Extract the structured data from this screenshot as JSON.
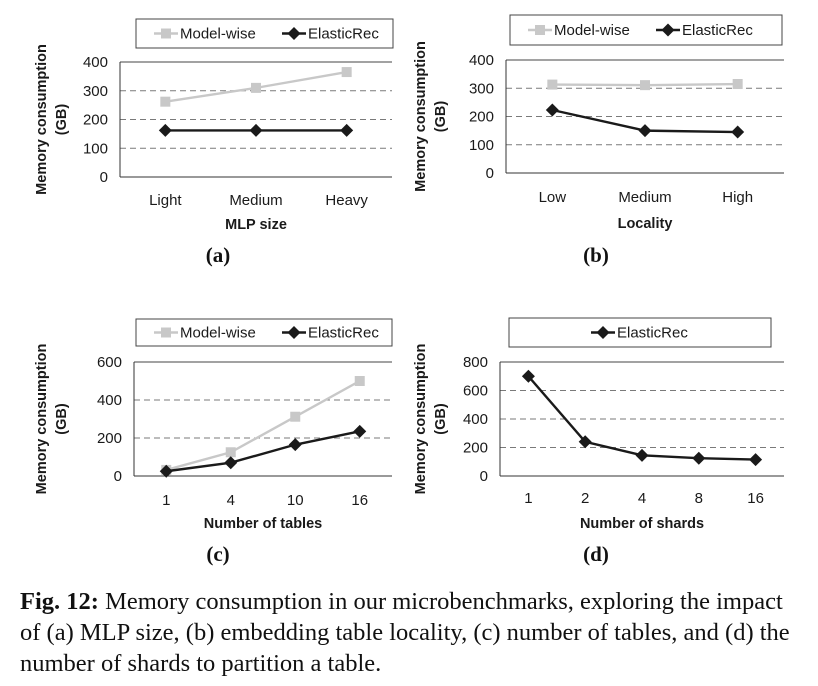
{
  "colors": {
    "model_wise": "#c8c8c8",
    "elasticrec": "#1a1a1a",
    "grid": "#7a7a7a"
  },
  "caption": {
    "label": "Fig. 12:",
    "text": "Memory consumption in our microbenchmarks, exploring the impact of (a) MLP size, (b) embedding table locality, (c) number of tables, and (d) the number of shards to partition a table."
  },
  "chart_data": [
    {
      "panel": "(a)",
      "type": "line",
      "xlabel": "MLP size",
      "ylabel": "Memory consumption (GB)",
      "categories": [
        "Light",
        "Medium",
        "Heavy"
      ],
      "ylim": [
        0,
        400
      ],
      "yticks": [
        0,
        100,
        200,
        300,
        400
      ],
      "grid": true,
      "legend": "top",
      "series": [
        {
          "name": "Model-wise",
          "values": [
            262,
            310,
            365
          ]
        },
        {
          "name": "ElasticRec",
          "values": [
            162,
            162,
            162
          ]
        }
      ]
    },
    {
      "panel": "(b)",
      "type": "line",
      "xlabel": "Locality",
      "ylabel": "Memory consumption (GB)",
      "categories": [
        "Low",
        "Medium",
        "High"
      ],
      "ylim": [
        0,
        400
      ],
      "yticks": [
        0,
        100,
        200,
        300,
        400
      ],
      "grid": true,
      "legend": "top",
      "series": [
        {
          "name": "Model-wise",
          "values": [
            313,
            311,
            315
          ]
        },
        {
          "name": "ElasticRec",
          "values": [
            223,
            150,
            145
          ]
        }
      ]
    },
    {
      "panel": "(c)",
      "type": "line",
      "xlabel": "Number of tables",
      "ylabel": "Memory consumption (GB)",
      "categories": [
        "1",
        "4",
        "10",
        "16"
      ],
      "ylim": [
        0,
        600
      ],
      "yticks": [
        0,
        200,
        400,
        600
      ],
      "grid": true,
      "legend": "top",
      "series": [
        {
          "name": "Model-wise",
          "values": [
            32,
            125,
            312,
            500
          ]
        },
        {
          "name": "ElasticRec",
          "values": [
            25,
            70,
            165,
            235
          ]
        }
      ]
    },
    {
      "panel": "(d)",
      "type": "line",
      "xlabel": "Number of shards",
      "ylabel": "Memory consumption (GB)",
      "categories": [
        "1",
        "2",
        "4",
        "8",
        "16"
      ],
      "ylim": [
        0,
        800
      ],
      "yticks": [
        0,
        200,
        400,
        600,
        800
      ],
      "grid": true,
      "legend": "top",
      "series": [
        {
          "name": "ElasticRec",
          "values": [
            700,
            240,
            145,
            125,
            115
          ]
        }
      ]
    }
  ]
}
